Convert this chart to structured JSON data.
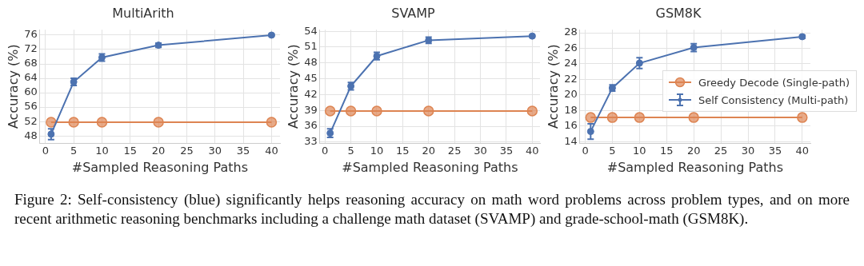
{
  "chart_data": [
    {
      "type": "line",
      "title": "MultiArith",
      "xlabel": "#Sampled Reasoning Paths",
      "ylabel": "Accuracy (%)",
      "xlim": [
        -1,
        41.5
      ],
      "xticks": [
        0,
        5,
        10,
        15,
        20,
        25,
        30,
        35,
        40
      ],
      "ylim": [
        46,
        77.5
      ],
      "yticks": [
        48,
        52,
        56,
        60,
        64,
        68,
        72,
        76
      ],
      "grid": true,
      "series": [
        {
          "color": "#dd8452",
          "marker": "circle",
          "x": [
            1,
            5,
            10,
            20,
            40
          ],
          "values": [
            51.8,
            51.8,
            51.8,
            51.8,
            51.8
          ]
        },
        {
          "color": "#4c72b0",
          "marker": "circle",
          "x": [
            1,
            5,
            10,
            20,
            40
          ],
          "values": [
            48.5,
            63,
            69.8,
            73.2,
            76
          ],
          "errors": [
            1.5,
            1,
            1,
            0.6,
            0.3
          ]
        }
      ]
    },
    {
      "type": "line",
      "title": "SVAMP",
      "xlabel": "#Sampled Reasoning Paths",
      "ylabel": "Accuracy (%)",
      "xlim": [
        -1,
        41.5
      ],
      "xticks": [
        0,
        5,
        10,
        15,
        20,
        25,
        30,
        35,
        40
      ],
      "ylim": [
        32.8,
        54.3
      ],
      "yticks": [
        33,
        36,
        39,
        42,
        45,
        48,
        51,
        54
      ],
      "grid": true,
      "series": [
        {
          "color": "#dd8452",
          "marker": "circle",
          "x": [
            1,
            5,
            10,
            20,
            40
          ],
          "values": [
            38.9,
            38.9,
            38.9,
            38.9,
            38.9
          ]
        },
        {
          "color": "#4c72b0",
          "marker": "circle",
          "x": [
            1,
            5,
            10,
            20,
            40
          ],
          "values": [
            34.7,
            43.6,
            49.3,
            52.3,
            53.1
          ],
          "errors": [
            0.8,
            0.7,
            0.7,
            0.6,
            0.2
          ]
        }
      ]
    },
    {
      "type": "line",
      "title": "GSM8K",
      "xlabel": "#Sampled Reasoning Paths",
      "ylabel": "Accuracy (%)",
      "xlim": [
        -1,
        41.5
      ],
      "xticks": [
        0,
        5,
        10,
        15,
        20,
        25,
        30,
        35,
        40
      ],
      "ylim": [
        13.8,
        28.4
      ],
      "yticks": [
        14,
        16,
        18,
        20,
        22,
        24,
        26,
        28
      ],
      "grid": true,
      "legend": "right",
      "series": [
        {
          "name": "Greedy Decode (Single-path)",
          "color": "#dd8452",
          "marker": "circle",
          "x": [
            1,
            5,
            10,
            20,
            40
          ],
          "values": [
            17.1,
            17.1,
            17.1,
            17.1,
            17.1
          ]
        },
        {
          "name": "Self Consistency (Multi-path)",
          "color": "#4c72b0",
          "marker": "circle",
          "x": [
            1,
            5,
            10,
            20,
            40
          ],
          "values": [
            15.3,
            20.9,
            24.1,
            26.1,
            27.5
          ],
          "errors": [
            1,
            0.4,
            0.7,
            0.5,
            0.2
          ]
        }
      ]
    },
    {
      "type": "other",
      "annotations": [
        "Figure 2: Self-consistency (blue) significantly helps reasoning accuracy on math word problems across problem types, and on more recent arithmetic reasoning benchmarks including a challenge math dataset (SVAMP) and grade-school-math (GSM8K)."
      ]
    }
  ]
}
